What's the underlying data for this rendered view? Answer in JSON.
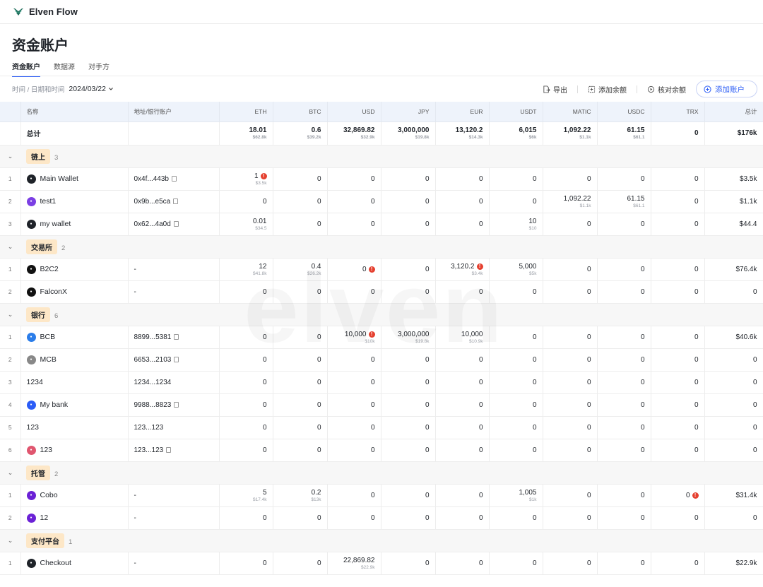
{
  "app": {
    "name": "Elven Flow"
  },
  "page": {
    "title": "资金账户",
    "watermark": "elven"
  },
  "tabs": [
    {
      "label": "资金账户"
    },
    {
      "label": "数据源"
    },
    {
      "label": "对手方"
    }
  ],
  "filter": {
    "label": "时间 / 日期和时间",
    "date": "2024/03/22"
  },
  "actions": {
    "export": "导出",
    "add_balance": "添加余额",
    "reconcile": "核对余额",
    "add_account": "添加账户"
  },
  "columns": [
    "名称",
    "地址/银行账户",
    "ETH",
    "BTC",
    "USD",
    "JPY",
    "EUR",
    "USDT",
    "MATIC",
    "USDC",
    "TRX",
    "总计"
  ],
  "total": {
    "label": "总计",
    "cells": [
      {
        "v": "18.01",
        "s": "$62.8k"
      },
      {
        "v": "0.6",
        "s": "$39.2k"
      },
      {
        "v": "32,869.82",
        "s": "$32.9k"
      },
      {
        "v": "3,000,000",
        "s": "$19.8k"
      },
      {
        "v": "13,120.2",
        "s": "$14.3k"
      },
      {
        "v": "6,015",
        "s": "$6k"
      },
      {
        "v": "1,092.22",
        "s": "$1.1k"
      },
      {
        "v": "61.15",
        "s": "$61.1"
      },
      {
        "v": "0",
        "s": ""
      },
      {
        "v": "$176k",
        "s": ""
      }
    ]
  },
  "groups": [
    {
      "name": "链上",
      "count": "3",
      "rows": [
        {
          "idx": "1",
          "name": "Main Wallet",
          "icon": "eth-icon",
          "color": "#1f2329",
          "addr": "0x4f...443b",
          "copy": true,
          "cells": [
            {
              "v": "1",
              "s": "$3.5k",
              "w": true
            },
            {
              "v": "0"
            },
            {
              "v": "0"
            },
            {
              "v": "0"
            },
            {
              "v": "0"
            },
            {
              "v": "0"
            },
            {
              "v": "0"
            },
            {
              "v": "0"
            },
            {
              "v": "0"
            },
            {
              "v": "$3.5k"
            }
          ]
        },
        {
          "idx": "2",
          "name": "test1",
          "icon": "polygon-icon",
          "color": "#7b3fe4",
          "addr": "0x9b...e5ca",
          "copy": true,
          "cells": [
            {
              "v": "0"
            },
            {
              "v": "0"
            },
            {
              "v": "0"
            },
            {
              "v": "0"
            },
            {
              "v": "0"
            },
            {
              "v": "0"
            },
            {
              "v": "1,092.22",
              "s": "$1.1k"
            },
            {
              "v": "61.15",
              "s": "$61.1"
            },
            {
              "v": "0"
            },
            {
              "v": "$1.1k"
            }
          ]
        },
        {
          "idx": "3",
          "name": "my wallet",
          "icon": "eth-icon",
          "color": "#1f2329",
          "addr": "0x62...4a0d",
          "copy": true,
          "cells": [
            {
              "v": "0.01",
              "s": "$34.5"
            },
            {
              "v": "0"
            },
            {
              "v": "0"
            },
            {
              "v": "0"
            },
            {
              "v": "0"
            },
            {
              "v": "10",
              "s": "$10"
            },
            {
              "v": "0"
            },
            {
              "v": "0"
            },
            {
              "v": "0"
            },
            {
              "v": "$44.4"
            }
          ]
        }
      ]
    },
    {
      "name": "交易所",
      "count": "2",
      "rows": [
        {
          "idx": "1",
          "name": "B2C2",
          "icon": "b2c2-icon",
          "color": "#111",
          "addr": "-",
          "copy": false,
          "cells": [
            {
              "v": "12",
              "s": "$41.8k"
            },
            {
              "v": "0.4",
              "s": "$26.2k"
            },
            {
              "v": "0",
              "w": true
            },
            {
              "v": "0"
            },
            {
              "v": "3,120.2",
              "s": "$3.4k",
              "w": true
            },
            {
              "v": "5,000",
              "s": "$5k"
            },
            {
              "v": "0"
            },
            {
              "v": "0"
            },
            {
              "v": "0"
            },
            {
              "v": "$76.4k"
            }
          ]
        },
        {
          "idx": "2",
          "name": "FalconX",
          "icon": "falconx-icon",
          "color": "#111",
          "addr": "-",
          "copy": false,
          "cells": [
            {
              "v": "0"
            },
            {
              "v": "0"
            },
            {
              "v": "0"
            },
            {
              "v": "0"
            },
            {
              "v": "0"
            },
            {
              "v": "0"
            },
            {
              "v": "0"
            },
            {
              "v": "0"
            },
            {
              "v": "0"
            },
            {
              "v": "0"
            }
          ]
        }
      ]
    },
    {
      "name": "银行",
      "count": "6",
      "rows": [
        {
          "idx": "1",
          "name": "BCB",
          "icon": "bcb-icon",
          "color": "#2b7de9",
          "addr": "8899...5381",
          "copy": true,
          "cells": [
            {
              "v": "0"
            },
            {
              "v": "0"
            },
            {
              "v": "10,000",
              "s": "$10k",
              "w": true
            },
            {
              "v": "3,000,000",
              "s": "$19.8k"
            },
            {
              "v": "10,000",
              "s": "$10.9k"
            },
            {
              "v": "0"
            },
            {
              "v": "0"
            },
            {
              "v": "0"
            },
            {
              "v": "0"
            },
            {
              "v": "$40.6k"
            }
          ]
        },
        {
          "idx": "2",
          "name": "MCB",
          "icon": "mcb-icon",
          "color": "#888",
          "addr": "6653...2103",
          "copy": true,
          "cells": [
            {
              "v": "0"
            },
            {
              "v": "0"
            },
            {
              "v": "0"
            },
            {
              "v": "0"
            },
            {
              "v": "0"
            },
            {
              "v": "0"
            },
            {
              "v": "0"
            },
            {
              "v": "0"
            },
            {
              "v": "0"
            },
            {
              "v": "0"
            }
          ]
        },
        {
          "idx": "3",
          "name": "1234",
          "icon": "",
          "color": "",
          "addr": "1234...1234",
          "copy": false,
          "cells": [
            {
              "v": "0"
            },
            {
              "v": "0"
            },
            {
              "v": "0"
            },
            {
              "v": "0"
            },
            {
              "v": "0"
            },
            {
              "v": "0"
            },
            {
              "v": "0"
            },
            {
              "v": "0"
            },
            {
              "v": "0"
            },
            {
              "v": "0"
            }
          ]
        },
        {
          "idx": "4",
          "name": "My bank",
          "icon": "bank-icon",
          "color": "#2b5cf6",
          "addr": "9988...8823",
          "copy": true,
          "cells": [
            {
              "v": "0"
            },
            {
              "v": "0"
            },
            {
              "v": "0"
            },
            {
              "v": "0"
            },
            {
              "v": "0"
            },
            {
              "v": "0"
            },
            {
              "v": "0"
            },
            {
              "v": "0"
            },
            {
              "v": "0"
            },
            {
              "v": "0"
            }
          ]
        },
        {
          "idx": "5",
          "name": "123",
          "icon": "",
          "color": "",
          "addr": "123...123",
          "copy": false,
          "cells": [
            {
              "v": "0"
            },
            {
              "v": "0"
            },
            {
              "v": "0"
            },
            {
              "v": "0"
            },
            {
              "v": "0"
            },
            {
              "v": "0"
            },
            {
              "v": "0"
            },
            {
              "v": "0"
            },
            {
              "v": "0"
            },
            {
              "v": "0"
            }
          ]
        },
        {
          "idx": "6",
          "name": "123",
          "icon": "pattern-icon",
          "color": "#e0566f",
          "addr": "123...123",
          "copy": true,
          "cells": [
            {
              "v": "0"
            },
            {
              "v": "0"
            },
            {
              "v": "0"
            },
            {
              "v": "0"
            },
            {
              "v": "0"
            },
            {
              "v": "0"
            },
            {
              "v": "0"
            },
            {
              "v": "0"
            },
            {
              "v": "0"
            },
            {
              "v": "0"
            }
          ]
        }
      ]
    },
    {
      "name": "托管",
      "count": "2",
      "rows": [
        {
          "idx": "1",
          "name": "Cobo",
          "icon": "cobo-icon",
          "color": "#6b21d6",
          "addr": "-",
          "copy": false,
          "cells": [
            {
              "v": "5",
              "s": "$17.4k"
            },
            {
              "v": "0.2",
              "s": "$13k"
            },
            {
              "v": "0"
            },
            {
              "v": "0"
            },
            {
              "v": "0"
            },
            {
              "v": "1,005",
              "s": "$1k"
            },
            {
              "v": "0"
            },
            {
              "v": "0"
            },
            {
              "v": "0",
              "w": true
            },
            {
              "v": "$31.4k"
            }
          ]
        },
        {
          "idx": "2",
          "name": "12",
          "icon": "cobo-icon",
          "color": "#6b21d6",
          "addr": "-",
          "copy": false,
          "cells": [
            {
              "v": "0"
            },
            {
              "v": "0"
            },
            {
              "v": "0"
            },
            {
              "v": "0"
            },
            {
              "v": "0"
            },
            {
              "v": "0"
            },
            {
              "v": "0"
            },
            {
              "v": "0"
            },
            {
              "v": "0"
            },
            {
              "v": "0"
            }
          ]
        }
      ]
    },
    {
      "name": "支付平台",
      "count": "1",
      "rows": [
        {
          "idx": "1",
          "name": "Checkout",
          "icon": "checkout-icon",
          "color": "#1f2329",
          "addr": "-",
          "copy": false,
          "cells": [
            {
              "v": "0"
            },
            {
              "v": "0"
            },
            {
              "v": "22,869.82",
              "s": "$22.9k"
            },
            {
              "v": "0"
            },
            {
              "v": "0"
            },
            {
              "v": "0"
            },
            {
              "v": "0"
            },
            {
              "v": "0"
            },
            {
              "v": "0"
            },
            {
              "v": "$22.9k"
            }
          ]
        }
      ]
    }
  ]
}
